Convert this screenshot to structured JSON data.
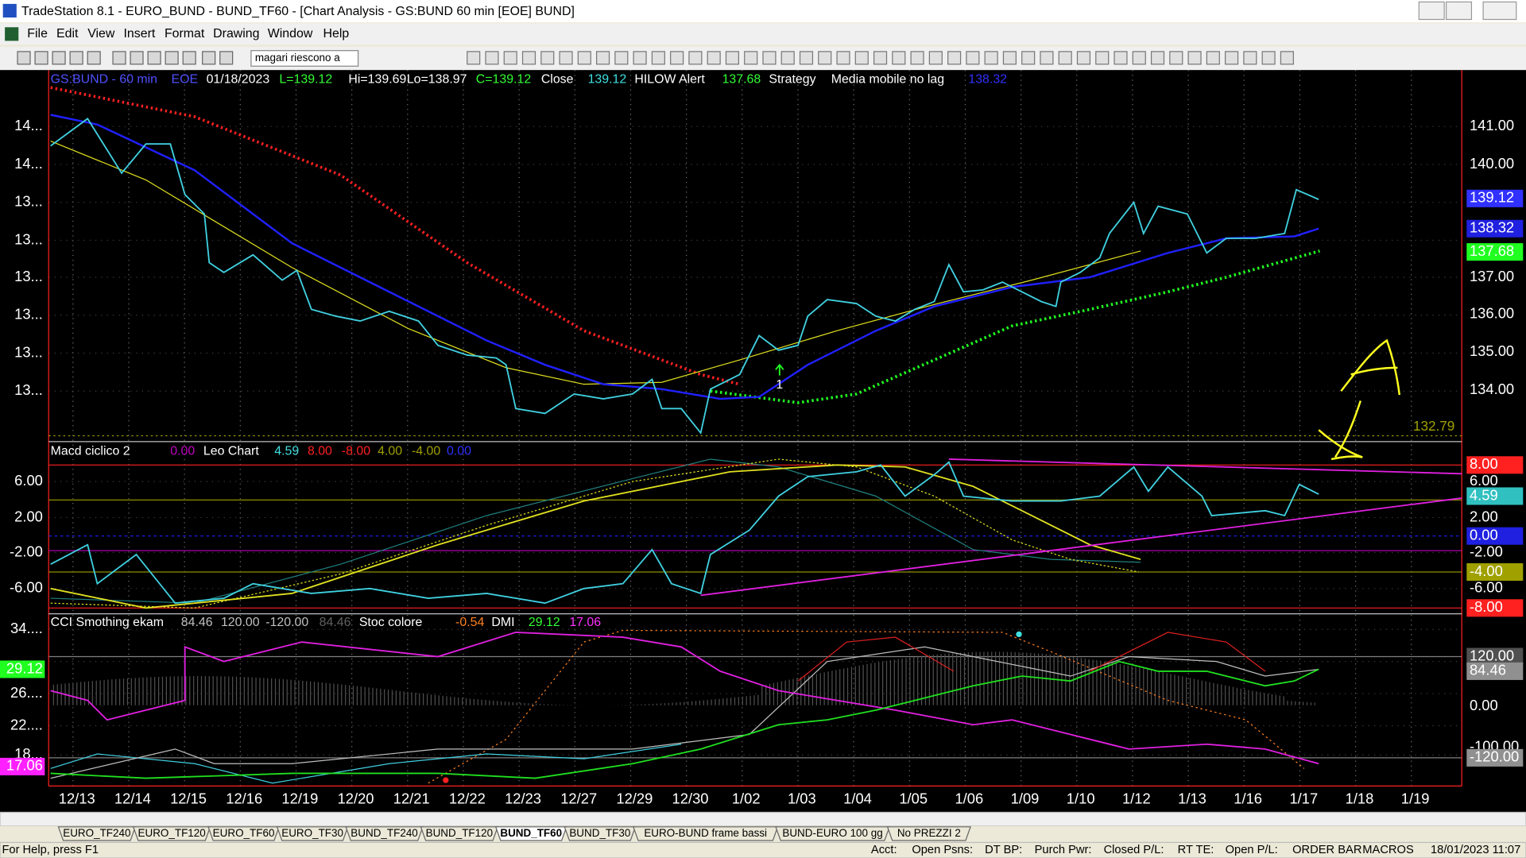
{
  "window": {
    "title": "TradeStation 8.1 - EURO_BUND - BUND_TF60 - [Chart Analysis - GS:BUND  60 min  [EOE] BUND]"
  },
  "menu": [
    "File",
    "Edit",
    "View",
    "Insert",
    "Format",
    "Drawing",
    "Window",
    "Help"
  ],
  "toolbar": {
    "combo": "magari riescono a"
  },
  "price_panel": {
    "legend": [
      {
        "text": "GS:BUND - 60 min",
        "color": "#5050ff"
      },
      {
        "text": "EOE",
        "color": "#5050ff"
      },
      {
        "text": "01/18/2023",
        "color": "#ffffff"
      },
      {
        "text": "L=139.12",
        "color": "#33ff33"
      },
      {
        "text": "Hi=139.69",
        "color": "#ffffff"
      },
      {
        "text": "Lo=138.97",
        "color": "#ffffff"
      },
      {
        "text": "C=139.12",
        "color": "#33ff33"
      },
      {
        "text": "Close",
        "color": "#ffffff"
      },
      {
        "text": "139.12",
        "color": "#40e0e0"
      },
      {
        "text": "HILOW Alert",
        "color": "#ffffff"
      },
      {
        "text": "137.68",
        "color": "#33ff33"
      },
      {
        "text": "Strategy",
        "color": "#ffffff"
      },
      {
        "text": "Media mobile no lag",
        "color": "#ffffff"
      },
      {
        "text": "138.32",
        "color": "#3030ff"
      }
    ],
    "left_axis": [
      "14...",
      "14...",
      "13...",
      "13...",
      "13...",
      "13...",
      "13...",
      "13..."
    ],
    "right_axis": [
      {
        "text": "141.00"
      },
      {
        "text": "140.00"
      },
      {
        "text": "139.12",
        "bg": "#3030ff"
      },
      {
        "text": "138.32",
        "bg": "#2020e0"
      },
      {
        "text": "137.68",
        "bg": "#20ff20",
        "color": "#000000"
      },
      {
        "text": "137.00"
      },
      {
        "text": "136.00"
      },
      {
        "text": "135.00"
      },
      {
        "text": "134.00"
      }
    ],
    "level": "132.79",
    "signal": "1"
  },
  "macd_panel": {
    "legend": [
      {
        "text": "Macd ciclico 2",
        "color": "#ffffff"
      },
      {
        "text": "0.00",
        "color": "#c000c0"
      },
      {
        "text": "Leo Chart",
        "color": "#ffffff"
      },
      {
        "text": "4.59",
        "color": "#40e0e0"
      },
      {
        "text": "8.00",
        "color": "#ff2020"
      },
      {
        "text": "-8.00",
        "color": "#ff2020"
      },
      {
        "text": "4.00",
        "color": "#a0a000"
      },
      {
        "text": "-4.00",
        "color": "#a0a000"
      },
      {
        "text": "0.00",
        "color": "#3030ff"
      }
    ],
    "left_axis": [
      "6.00",
      "2.00",
      "-2.00",
      "-6.00"
    ],
    "right_axis": [
      {
        "text": "8.00",
        "bg": "#ff2020"
      },
      {
        "text": "6.00"
      },
      {
        "text": "4.59",
        "bg": "#30c0c0"
      },
      {
        "text": "2.00"
      },
      {
        "text": "0.00",
        "bg": "#2020e0"
      },
      {
        "text": "-2.00"
      },
      {
        "text": "-4.00",
        "bg": "#a0a000",
        "color": "#000000"
      },
      {
        "text": "-6.00"
      },
      {
        "text": "-8.00",
        "bg": "#ff2020"
      }
    ]
  },
  "cci_panel": {
    "legend": [
      {
        "text": "CCI Smothing ekam",
        "color": "#ffffff"
      },
      {
        "text": "84.46",
        "color": "#c0c0c0"
      },
      {
        "text": "120.00",
        "color": "#c0c0c0"
      },
      {
        "text": "-120.00",
        "color": "#c0c0c0"
      },
      {
        "text": "84.46",
        "color": "#606060"
      },
      {
        "text": "Stoc colore",
        "color": "#ffffff"
      },
      {
        "text": "-0.54",
        "color": "#ff8020"
      },
      {
        "text": "DMI",
        "color": "#ffffff"
      },
      {
        "text": "29.12",
        "color": "#33ff33"
      },
      {
        "text": "17.06",
        "color": "#ff30ff"
      }
    ],
    "left_axis": [
      {
        "text": "34...."
      },
      {
        "text": "29.12",
        "bg": "#20ff20",
        "color": "#000000"
      },
      {
        "text": "26...."
      },
      {
        "text": "22...."
      },
      {
        "text": "18..."
      },
      {
        "text": "17.06",
        "bg": "#ff20ff",
        "color": "#000000"
      }
    ],
    "right_axis": [
      {
        "text": "120.00",
        "bg": "#505050"
      },
      {
        "text": "84.46",
        "bg": "#909090"
      },
      {
        "text": "0.00"
      },
      {
        "text": "-100.00"
      },
      {
        "text": "-120.00",
        "bg": "#909090"
      }
    ]
  },
  "dates": [
    "12/13",
    "12/14",
    "12/15",
    "12/16",
    "12/19",
    "12/20",
    "12/21",
    "12/22",
    "12/23",
    "12/27",
    "12/29",
    "12/30",
    "1/02",
    "1/03",
    "1/04",
    "1/05",
    "1/06",
    "1/09",
    "1/10",
    "1/12",
    "1/13",
    "1/16",
    "1/17",
    "1/18",
    "1/19"
  ],
  "tabs": [
    "EURO_TF240",
    "EURO_TF120",
    "EURO_TF60",
    "EURO_TF30",
    "BUND_TF240",
    "BUND_TF120",
    "BUND_TF60",
    "BUND_TF30",
    "EURO-BUND frame bassi",
    "BUND-EURO 100 gg",
    "No PREZZI 2"
  ],
  "active_tab": "BUND_TF60",
  "status": [
    "For Help, press F1",
    "Acct:",
    "Open Psns:",
    "DT BP:",
    "Purch Pwr:",
    "Closed P/L:",
    "RT TE:",
    "Open P/L:",
    "ORDER BAR",
    "MACROS",
    "18/01/2023 11:07"
  ]
}
